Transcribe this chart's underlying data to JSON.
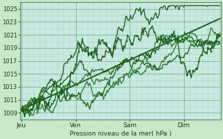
{
  "bg_color": "#c8e8c8",
  "plot_bg_color": "#c8e8e0",
  "grid_major_color": "#88bb99",
  "grid_minor_color": "#aaddcc",
  "line_color_dark": "#1a5c1a",
  "line_color_mid": "#2d7a2d",
  "xlabel_text": "Pression niveau de la mer( hPa )",
  "yticks": [
    1009,
    1011,
    1013,
    1015,
    1017,
    1019,
    1021,
    1023,
    1025
  ],
  "ylim": [
    1008.0,
    1026.0
  ],
  "xtick_labels": [
    "Jeu",
    "Ven",
    "Sam",
    "Dim"
  ],
  "xtick_positions": [
    0,
    72,
    144,
    216
  ],
  "xlim": [
    -2,
    265
  ],
  "n_points": 265
}
